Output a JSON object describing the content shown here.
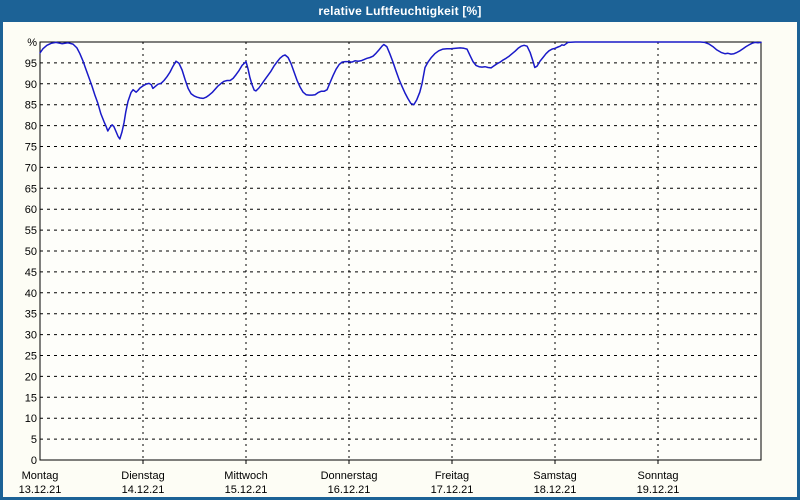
{
  "window": {
    "title": "relative Luftfeuchtigkeit [%]",
    "colors": {
      "title_bar": "#1C6296",
      "border": "#1C6296",
      "background": "#FDFDF5",
      "plot_background": "#FEFEFA",
      "line": "#1A1AC8",
      "grid": "#000000",
      "text": "#000000",
      "title_text": "#FFFFFF"
    }
  },
  "chart_data": {
    "type": "line",
    "title": "relative Luftfeuchtigkeit [%]",
    "ylabel": "%",
    "unit": "%",
    "ylim": [
      0,
      100
    ],
    "ytick_step": 5,
    "ytick_labels": [
      "0",
      "5",
      "10",
      "15",
      "20",
      "25",
      "30",
      "35",
      "40",
      "45",
      "50",
      "55",
      "60",
      "65",
      "70",
      "75",
      "80",
      "85",
      "90",
      "95"
    ],
    "ytop_label": "%",
    "grid": "dashed",
    "legend_position": "none",
    "x_range_hours": [
      0,
      168
    ],
    "day_tick_hours": [
      0,
      24,
      48,
      72,
      96,
      120,
      144
    ],
    "categories": [
      {
        "name": "Montag",
        "date": "13.12.21"
      },
      {
        "name": "Dienstag",
        "date": "14.12.21"
      },
      {
        "name": "Mittwoch",
        "date": "15.12.21"
      },
      {
        "name": "Donnerstag",
        "date": "16.12.21"
      },
      {
        "name": "Freitag",
        "date": "17.12.21"
      },
      {
        "name": "Samstag",
        "date": "18.12.21"
      },
      {
        "name": "Sonntag",
        "date": "19.12.21"
      }
    ],
    "series": [
      {
        "name": "relative Luftfeuchtigkeit [%]",
        "points": [
          [
            0,
            97.4
          ],
          [
            0.7,
            98.4
          ],
          [
            1.6,
            99.2
          ],
          [
            2.6,
            99.7
          ],
          [
            3.7,
            99.9
          ],
          [
            5.1,
            99.6
          ],
          [
            6.5,
            99.8
          ],
          [
            7.7,
            99.5
          ],
          [
            8.6,
            98.6
          ],
          [
            9.3,
            97.2
          ],
          [
            10,
            95.5
          ],
          [
            10.7,
            93.5
          ],
          [
            11.4,
            91.5
          ],
          [
            12.1,
            89.5
          ],
          [
            12.8,
            87.3
          ],
          [
            13.5,
            85.3
          ],
          [
            14.2,
            82.8
          ],
          [
            14.9,
            81
          ],
          [
            15.4,
            79.8
          ],
          [
            15.8,
            78.7
          ],
          [
            16.3,
            79.6
          ],
          [
            16.8,
            80.2
          ],
          [
            17.2,
            79.8
          ],
          [
            17.7,
            78.6
          ],
          [
            18.2,
            77.4
          ],
          [
            18.6,
            76.8
          ],
          [
            19.1,
            78.5
          ],
          [
            19.6,
            80.8
          ],
          [
            20,
            83.3
          ],
          [
            20.5,
            85.8
          ],
          [
            21.2,
            87.9
          ],
          [
            21.7,
            88.6
          ],
          [
            22.4,
            88
          ],
          [
            22.8,
            88.4
          ],
          [
            23.3,
            89
          ],
          [
            24,
            89.5
          ],
          [
            24.7,
            89.9
          ],
          [
            25.4,
            90.1
          ],
          [
            25.9,
            89.8
          ],
          [
            26.3,
            88.9
          ],
          [
            27,
            89.5
          ],
          [
            27.5,
            89.9
          ],
          [
            28.2,
            90.1
          ],
          [
            28.9,
            90.8
          ],
          [
            29.6,
            91.7
          ],
          [
            30.3,
            92.8
          ],
          [
            31,
            94.2
          ],
          [
            31.7,
            95.4
          ],
          [
            32.4,
            94.9
          ],
          [
            33.1,
            93.3
          ],
          [
            33.8,
            91
          ],
          [
            34.5,
            88.9
          ],
          [
            35.2,
            87.6
          ],
          [
            35.9,
            87.1
          ],
          [
            36.6,
            86.8
          ],
          [
            37.3,
            86.6
          ],
          [
            38,
            86.5
          ],
          [
            38.7,
            86.8
          ],
          [
            39.4,
            87.3
          ],
          [
            40.1,
            87.9
          ],
          [
            40.8,
            88.7
          ],
          [
            41.5,
            89.5
          ],
          [
            42.2,
            90.1
          ],
          [
            42.9,
            90.6
          ],
          [
            43.6,
            90.8
          ],
          [
            44.3,
            90.8
          ],
          [
            45,
            91.3
          ],
          [
            45.7,
            92.2
          ],
          [
            46.4,
            93.2
          ],
          [
            47.1,
            94.4
          ],
          [
            48,
            95.3
          ],
          [
            48.5,
            93.5
          ],
          [
            48.9,
            91.5
          ],
          [
            49.4,
            89.8
          ],
          [
            49.9,
            88.5
          ],
          [
            50.3,
            88.3
          ],
          [
            51,
            89
          ],
          [
            51.7,
            90
          ],
          [
            52.4,
            91
          ],
          [
            53.1,
            92
          ],
          [
            53.8,
            93
          ],
          [
            54.5,
            94.2
          ],
          [
            55.2,
            95.2
          ],
          [
            55.9,
            96.1
          ],
          [
            56.6,
            96.7
          ],
          [
            57.1,
            96.9
          ],
          [
            57.8,
            96.3
          ],
          [
            58.5,
            94.8
          ],
          [
            59.2,
            92.8
          ],
          [
            59.9,
            90.8
          ],
          [
            60.6,
            89.2
          ],
          [
            61.3,
            88
          ],
          [
            62,
            87.4
          ],
          [
            62.7,
            87.3
          ],
          [
            63.4,
            87.3
          ],
          [
            64.1,
            87.4
          ],
          [
            64.8,
            87.9
          ],
          [
            65.5,
            88.2
          ],
          [
            66.2,
            88.2
          ],
          [
            66.9,
            88.6
          ],
          [
            67.6,
            90.3
          ],
          [
            68.3,
            92
          ],
          [
            69,
            93.5
          ],
          [
            69.7,
            94.6
          ],
          [
            70.4,
            95.2
          ],
          [
            71.1,
            95.3
          ],
          [
            71.8,
            95.3
          ],
          [
            72.7,
            95.2
          ],
          [
            73.4,
            95.5
          ],
          [
            74.1,
            95.4
          ],
          [
            74.8,
            95.5
          ],
          [
            75.5,
            95.8
          ],
          [
            76.2,
            96.1
          ],
          [
            76.9,
            96.3
          ],
          [
            77.6,
            96.6
          ],
          [
            78.3,
            97.3
          ],
          [
            79,
            98.1
          ],
          [
            79.7,
            99
          ],
          [
            80.1,
            99.4
          ],
          [
            80.8,
            98.9
          ],
          [
            81.5,
            97.2
          ],
          [
            82.2,
            95.3
          ],
          [
            82.9,
            93.2
          ],
          [
            83.6,
            91.2
          ],
          [
            84.3,
            89.5
          ],
          [
            85,
            87.9
          ],
          [
            85.7,
            86.5
          ],
          [
            86.4,
            85.3
          ],
          [
            87.1,
            85
          ],
          [
            87.8,
            86.2
          ],
          [
            88.5,
            88
          ],
          [
            89,
            90
          ],
          [
            89.7,
            93.9
          ],
          [
            90.4,
            95.2
          ],
          [
            91.1,
            96.2
          ],
          [
            92,
            97.2
          ],
          [
            92.9,
            97.9
          ],
          [
            93.9,
            98.3
          ],
          [
            94.8,
            98.4
          ],
          [
            95.7,
            98.4
          ],
          [
            96.9,
            98.5
          ],
          [
            97.9,
            98.6
          ],
          [
            98.8,
            98.5
          ],
          [
            99.5,
            98.3
          ],
          [
            100.2,
            96.8
          ],
          [
            100.9,
            95.3
          ],
          [
            101.6,
            94.4
          ],
          [
            102.3,
            94.1
          ],
          [
            103,
            94
          ],
          [
            103.7,
            94.1
          ],
          [
            104.4,
            93.9
          ],
          [
            105.1,
            93.8
          ],
          [
            105.8,
            94.3
          ],
          [
            106.5,
            94.8
          ],
          [
            107.2,
            95.2
          ],
          [
            107.9,
            95.7
          ],
          [
            108.6,
            96.1
          ],
          [
            109.3,
            96.6
          ],
          [
            110,
            97.2
          ],
          [
            110.7,
            97.8
          ],
          [
            111.4,
            98.5
          ],
          [
            112.1,
            99
          ],
          [
            112.8,
            99.2
          ],
          [
            113.5,
            99
          ],
          [
            114.2,
            97.5
          ],
          [
            114.9,
            95.3
          ],
          [
            115.3,
            93.9
          ],
          [
            115.8,
            94.2
          ],
          [
            116.5,
            95.4
          ],
          [
            117.2,
            96.3
          ],
          [
            117.9,
            97.2
          ],
          [
            118.6,
            97.9
          ],
          [
            119.3,
            98.3
          ],
          [
            120,
            98.5
          ],
          [
            120.7,
            98.8
          ],
          [
            121.2,
            99
          ],
          [
            121.6,
            99.3
          ],
          [
            122.1,
            99.2
          ],
          [
            122.6,
            99.6
          ],
          [
            123,
            99.9
          ],
          [
            124.7,
            100
          ],
          [
            128.2,
            100
          ],
          [
            132.8,
            100
          ],
          [
            137.5,
            100
          ],
          [
            142.1,
            100
          ],
          [
            144,
            100
          ],
          [
            146.8,
            100
          ],
          [
            150.3,
            100
          ],
          [
            153.8,
            100
          ],
          [
            154.9,
            99.9
          ],
          [
            155.9,
            99.5
          ],
          [
            156.8,
            98.9
          ],
          [
            157.7,
            98.1
          ],
          [
            158.7,
            97.5
          ],
          [
            159.6,
            97.2
          ],
          [
            160.3,
            97.3
          ],
          [
            161,
            97.1
          ],
          [
            161.7,
            97.2
          ],
          [
            162.4,
            97.5
          ],
          [
            163.1,
            97.9
          ],
          [
            163.8,
            98.4
          ],
          [
            164.5,
            98.9
          ],
          [
            165.2,
            99.3
          ],
          [
            165.9,
            99.7
          ],
          [
            166.6,
            99.9
          ],
          [
            167.3,
            99.8
          ],
          [
            168,
            99.9
          ]
        ]
      }
    ]
  }
}
